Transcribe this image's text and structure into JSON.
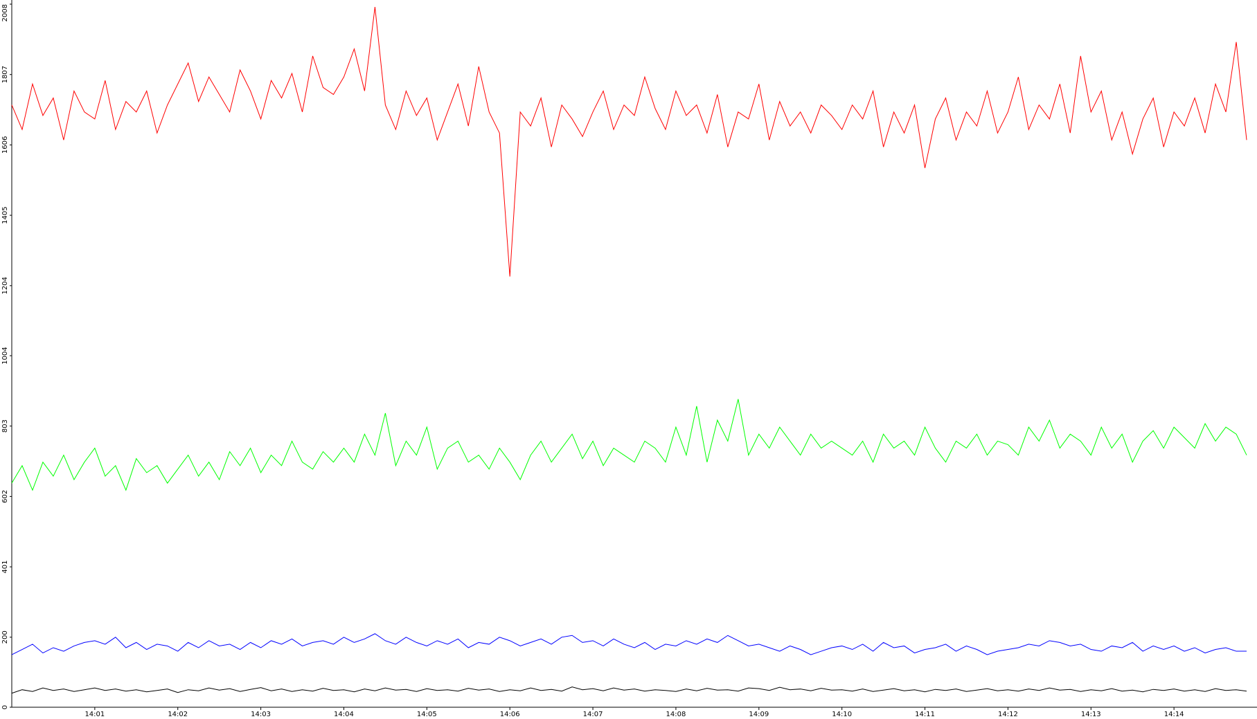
{
  "chart_data": {
    "type": "line",
    "categories": [
      null,
      null,
      null,
      null,
      null,
      null,
      null,
      null,
      "14:01",
      null,
      null,
      null,
      null,
      null,
      null,
      null,
      "14:02",
      null,
      null,
      null,
      null,
      null,
      null,
      null,
      "14:03",
      null,
      null,
      null,
      null,
      null,
      null,
      null,
      "14:04",
      null,
      null,
      null,
      null,
      null,
      null,
      null,
      "14:05",
      null,
      null,
      null,
      null,
      null,
      null,
      null,
      "14:06",
      null,
      null,
      null,
      null,
      null,
      null,
      null,
      "14:07",
      null,
      null,
      null,
      null,
      null,
      null,
      null,
      "14:08",
      null,
      null,
      null,
      null,
      null,
      null,
      null,
      "14:09",
      null,
      null,
      null,
      null,
      null,
      null,
      null,
      "14:10",
      null,
      null,
      null,
      null,
      null,
      null,
      null,
      "14:11",
      null,
      null,
      null,
      null,
      null,
      null,
      null,
      "14:12",
      null,
      null,
      null,
      null,
      null,
      null,
      null,
      "14:13",
      null,
      null,
      null,
      null,
      null,
      null,
      null,
      "14:14",
      null,
      null,
      null,
      null,
      null,
      null,
      null
    ],
    "series": [
      {
        "color": "#ff0000",
        "values": [
          1720,
          1650,
          1780,
          1690,
          1740,
          1620,
          1760,
          1700,
          1680,
          1790,
          1650,
          1730,
          1700,
          1760,
          1640,
          1720,
          1780,
          1840,
          1730,
          1800,
          1750,
          1700,
          1820,
          1760,
          1680,
          1790,
          1740,
          1810,
          1700,
          1860,
          1770,
          1750,
          1800,
          1880,
          1760,
          2000,
          1720,
          1650,
          1760,
          1690,
          1740,
          1620,
          1700,
          1780,
          1660,
          1830,
          1700,
          1640,
          1230,
          1700,
          1660,
          1740,
          1600,
          1720,
          1680,
          1630,
          1700,
          1760,
          1650,
          1720,
          1690,
          1800,
          1710,
          1650,
          1760,
          1690,
          1720,
          1640,
          1750,
          1600,
          1700,
          1680,
          1780,
          1620,
          1730,
          1660,
          1700,
          1640,
          1720,
          1690,
          1650,
          1720,
          1680,
          1760,
          1600,
          1700,
          1640,
          1720,
          1540,
          1680,
          1740,
          1620,
          1700,
          1660,
          1760,
          1640,
          1700,
          1800,
          1650,
          1720,
          1680,
          1780,
          1640,
          1860,
          1700,
          1760,
          1620,
          1700,
          1580,
          1680,
          1740,
          1600,
          1700,
          1660,
          1740,
          1640,
          1780,
          1700,
          1900,
          1620
        ]
      },
      {
        "color": "#00ff00",
        "values": [
          640,
          690,
          620,
          700,
          660,
          720,
          650,
          700,
          740,
          660,
          690,
          620,
          710,
          670,
          690,
          640,
          680,
          720,
          660,
          700,
          650,
          730,
          690,
          740,
          670,
          720,
          690,
          760,
          700,
          680,
          730,
          700,
          740,
          700,
          780,
          720,
          840,
          690,
          760,
          720,
          800,
          680,
          740,
          760,
          700,
          720,
          680,
          740,
          700,
          650,
          720,
          760,
          700,
          740,
          780,
          710,
          760,
          690,
          740,
          720,
          700,
          760,
          740,
          700,
          800,
          720,
          860,
          700,
          820,
          760,
          880,
          720,
          780,
          740,
          800,
          760,
          720,
          780,
          740,
          760,
          740,
          720,
          760,
          700,
          780,
          740,
          760,
          720,
          800,
          740,
          700,
          760,
          740,
          780,
          720,
          760,
          750,
          720,
          800,
          760,
          820,
          740,
          780,
          760,
          720,
          800,
          740,
          780,
          700,
          760,
          790,
          740,
          800,
          770,
          740,
          810,
          760,
          800,
          780,
          720
        ]
      },
      {
        "color": "#0000ff",
        "values": [
          150,
          165,
          180,
          155,
          170,
          160,
          175,
          185,
          190,
          180,
          200,
          170,
          185,
          165,
          180,
          175,
          160,
          185,
          170,
          190,
          175,
          180,
          165,
          185,
          170,
          190,
          180,
          195,
          175,
          185,
          190,
          180,
          200,
          185,
          195,
          210,
          190,
          180,
          200,
          185,
          175,
          190,
          180,
          195,
          170,
          185,
          180,
          200,
          190,
          175,
          185,
          195,
          180,
          200,
          205,
          185,
          190,
          175,
          195,
          180,
          170,
          185,
          165,
          180,
          175,
          190,
          180,
          195,
          185,
          205,
          190,
          175,
          180,
          170,
          160,
          175,
          165,
          150,
          160,
          170,
          175,
          165,
          180,
          160,
          185,
          170,
          175,
          155,
          165,
          170,
          180,
          160,
          175,
          165,
          150,
          160,
          165,
          170,
          180,
          175,
          190,
          185,
          175,
          180,
          165,
          160,
          175,
          170,
          185,
          160,
          175,
          165,
          175,
          160,
          170,
          155,
          165,
          170,
          160,
          160
        ]
      },
      {
        "color": "#000000",
        "values": [
          40,
          50,
          45,
          55,
          48,
          52,
          45,
          50,
          55,
          48,
          52,
          46,
          50,
          44,
          48,
          52,
          42,
          50,
          47,
          55,
          49,
          53,
          45,
          51,
          56,
          47,
          52,
          45,
          50,
          46,
          54,
          48,
          50,
          44,
          52,
          47,
          55,
          49,
          51,
          45,
          53,
          48,
          50,
          46,
          54,
          49,
          52,
          45,
          50,
          47,
          55,
          48,
          51,
          46,
          58,
          50,
          53,
          47,
          55,
          49,
          52,
          46,
          50,
          48,
          45,
          52,
          47,
          54,
          49,
          50,
          46,
          55,
          53,
          48,
          57,
          50,
          52,
          47,
          54,
          49,
          50,
          46,
          52,
          45,
          49,
          53,
          47,
          50,
          44,
          51,
          48,
          52,
          45,
          49,
          53,
          47,
          50,
          46,
          52,
          48,
          55,
          49,
          51,
          45,
          50,
          47,
          53,
          46,
          49,
          44,
          51,
          48,
          52,
          46,
          50,
          45,
          53,
          48,
          50,
          46
        ]
      }
    ],
    "ylim": [
      0,
      2008
    ],
    "yticks": [
      0,
      200,
      401,
      602,
      803,
      1004,
      1204,
      1405,
      1606,
      1807,
      2008
    ]
  }
}
